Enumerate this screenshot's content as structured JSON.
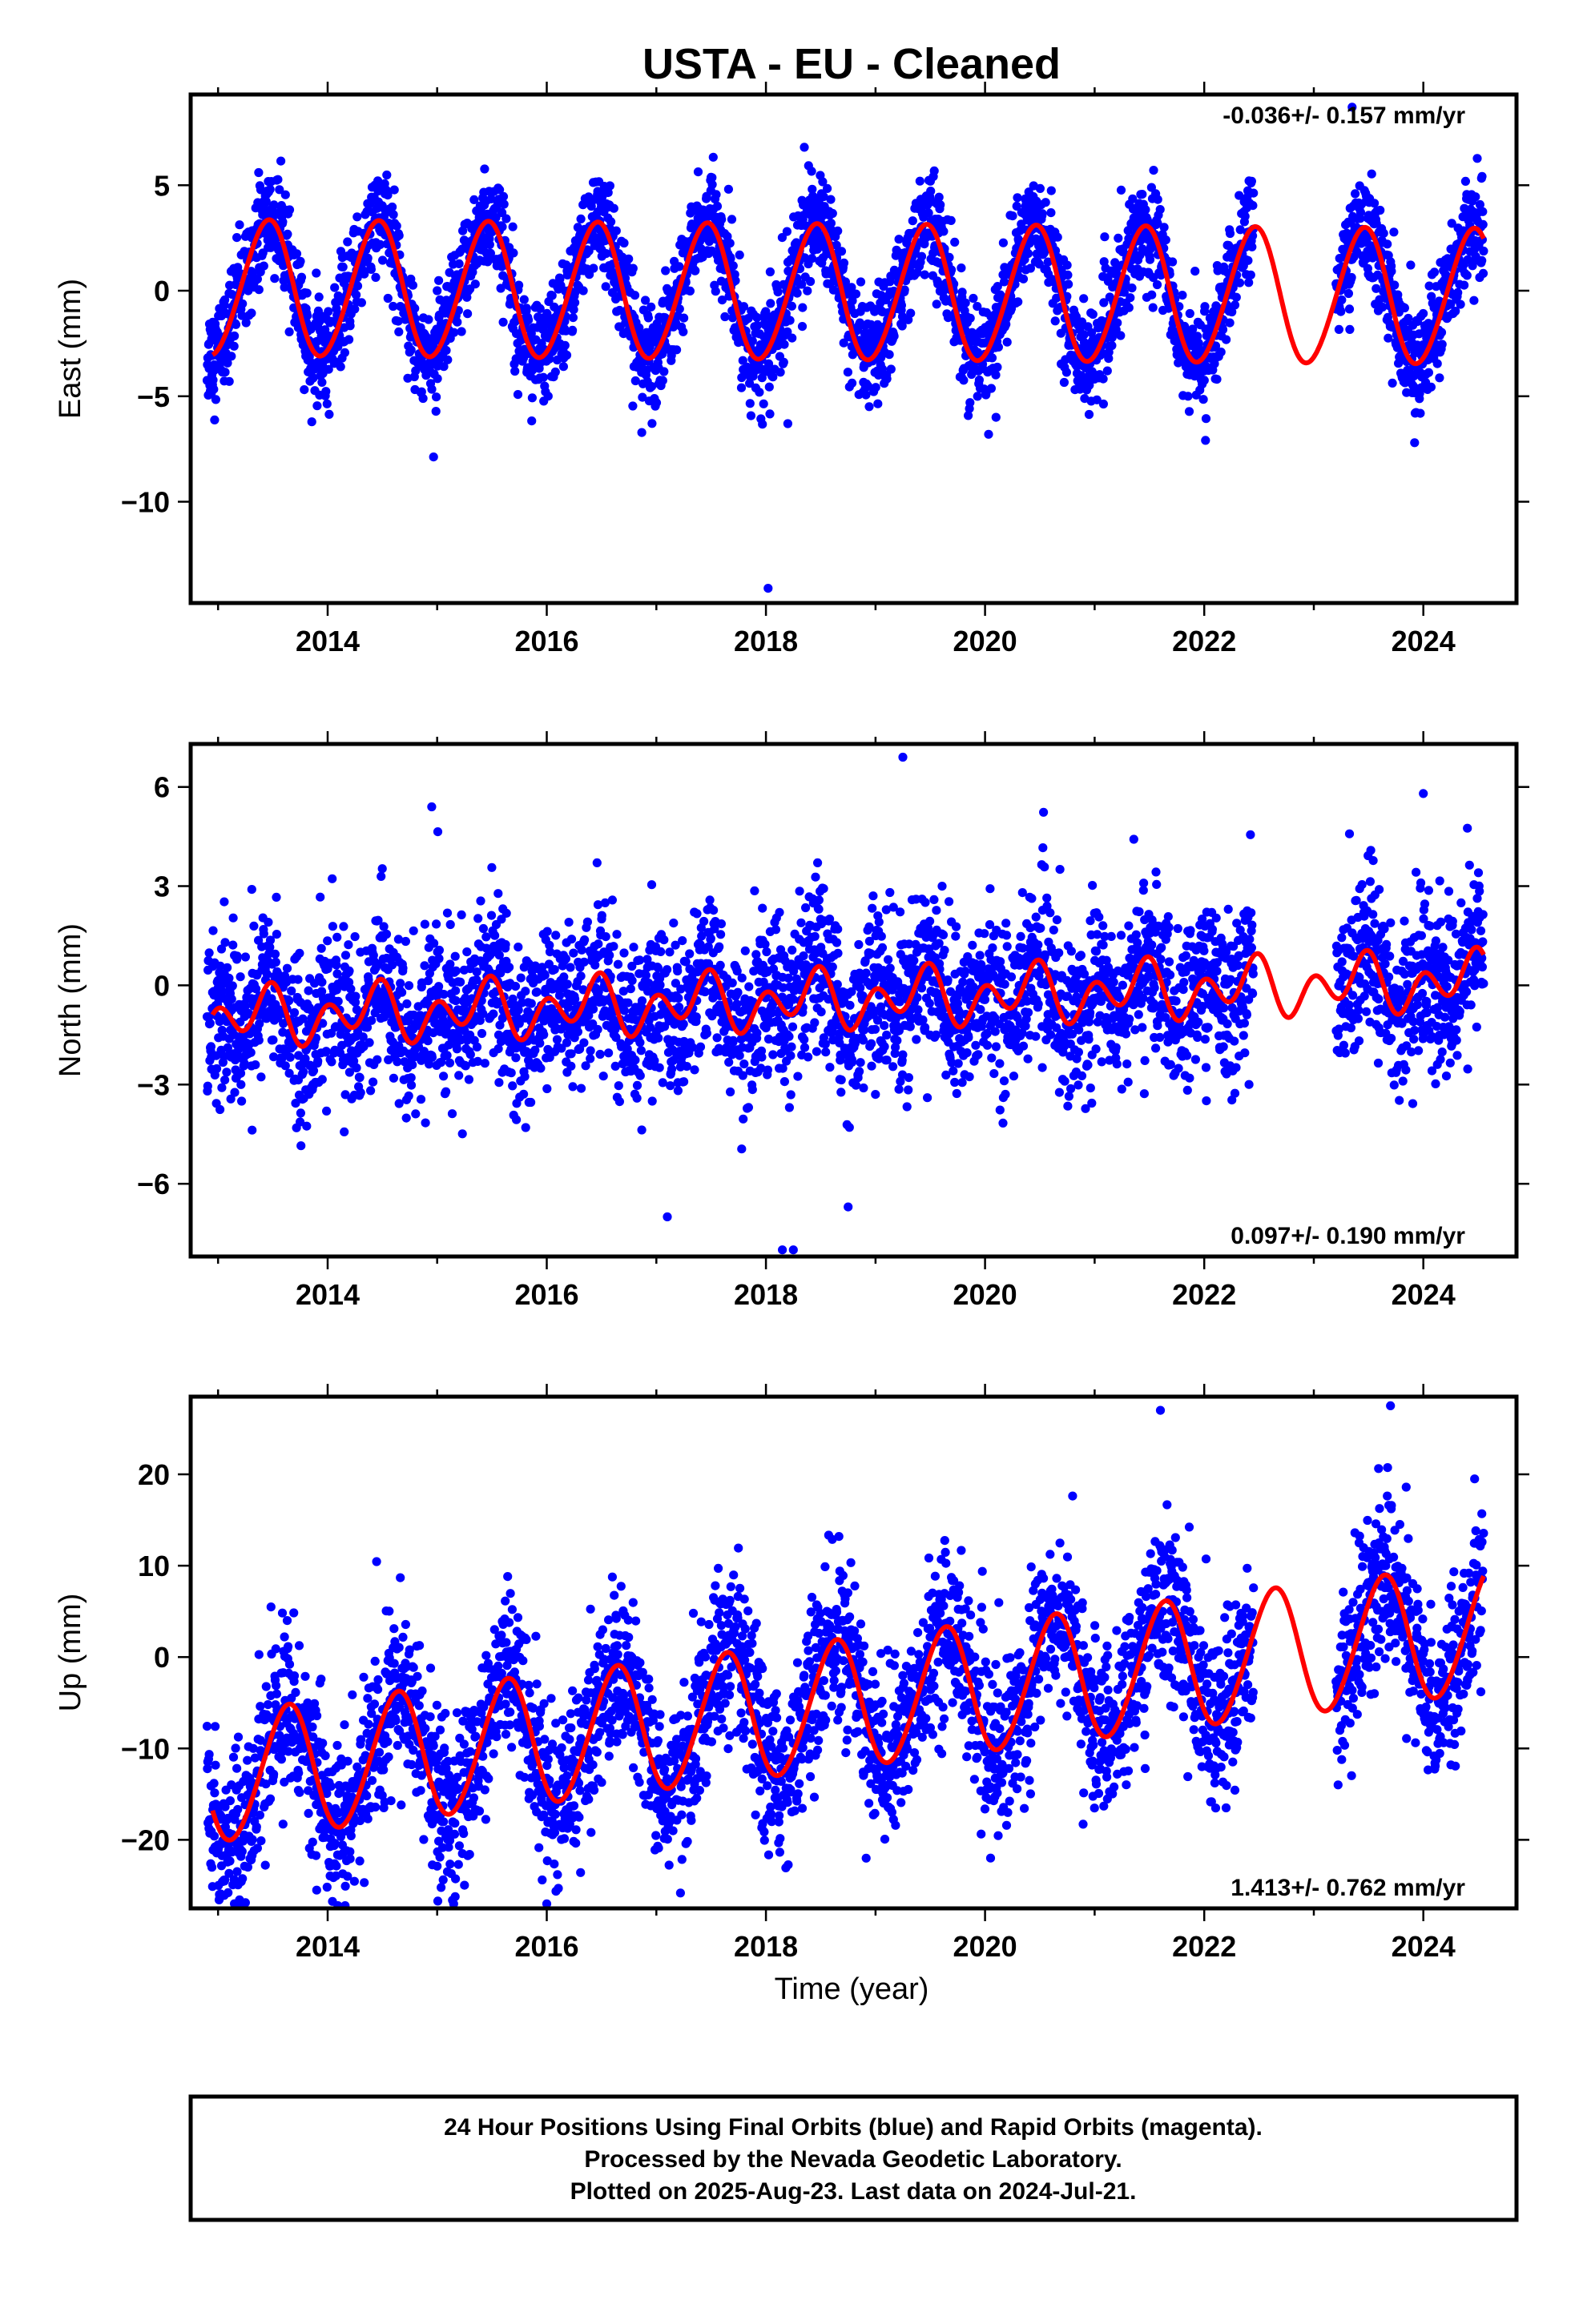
{
  "title": "USTA  - EU - Cleaned",
  "xlabel": "Time (year)",
  "footer": [
    "24 Hour Positions Using Final Orbits (blue) and Rapid Orbits (magenta).",
    "Processed by the Nevada Geodetic Laboratory.",
    "Plotted on 2025-Aug-23. Last data on 2024-Jul-21."
  ],
  "colors": {
    "data": "#0000ff",
    "model": "#ff0000",
    "frame": "#000000"
  },
  "chart_data": [
    {
      "type": "scatter",
      "ylabel": "East (mm)",
      "rate_text": "-0.036+/- 0.157 mm/yr",
      "rate_position": "top-right",
      "xlim": [
        2012.75,
        2024.85
      ],
      "ylim": [
        -14.8,
        9.3
      ],
      "xticks": [
        2014,
        2016,
        2018,
        2020,
        2022,
        2024
      ],
      "yticks": [
        5,
        0,
        -5,
        -10
      ],
      "ytick_labels": [
        "5",
        "0",
        "−5",
        "−10"
      ],
      "grid": false,
      "series": [
        {
          "kind": "observations",
          "sampling": "daily",
          "x_range": [
            2012.9,
            2024.55
          ],
          "data_gap": [
            2022.45,
            2023.2
          ],
          "model": {
            "offset": -0.1,
            "trend": -0.036,
            "amplitude": 3.2,
            "peak_phase": 0.45,
            "amplitude2": 0.2
          },
          "scatter_std": 1.2,
          "outliers": [
            [
              2018.02,
              -14.1
            ],
            [
              2023.92,
              -7.2
            ],
            [
              2018.2,
              -6.3
            ],
            [
              2020.1,
              -6.0
            ],
            [
              2023.35,
              8.7
            ],
            [
              2018.35,
              6.8
            ]
          ]
        },
        {
          "kind": "model_curve",
          "x_range": [
            2012.95,
            2024.55
          ],
          "model": {
            "offset": -0.1,
            "trend": -0.036,
            "amplitude": 3.2,
            "peak_phase": 0.45,
            "amplitude2": 0.2
          }
        }
      ]
    },
    {
      "type": "scatter",
      "ylabel": "North (mm)",
      "rate_text": "0.097+/- 0.190 mm/yr",
      "rate_position": "bottom-right",
      "xlim": [
        2012.75,
        2024.85
      ],
      "ylim": [
        -8.2,
        7.3
      ],
      "xticks": [
        2014,
        2016,
        2018,
        2020,
        2022,
        2024
      ],
      "yticks": [
        6,
        3,
        0,
        -3,
        -6
      ],
      "ytick_labels": [
        "6",
        "3",
        "0",
        "−3",
        "−6"
      ],
      "grid": false,
      "series": [
        {
          "kind": "observations",
          "sampling": "daily",
          "x_range": [
            2012.9,
            2024.55
          ],
          "data_gap": [
            2022.45,
            2023.2
          ],
          "model": {
            "offset": -0.45,
            "trend": 0.097,
            "amplitude": 0.45,
            "peak_phase": 0.4,
            "amplitude2": 0.65
          },
          "scatter_std": 1.2,
          "outliers": [
            [
              2019.25,
              6.9
            ],
            [
              2018.15,
              -8.0
            ],
            [
              2018.25,
              -8.0
            ],
            [
              2017.1,
              -7.0
            ],
            [
              2018.75,
              -6.7
            ],
            [
              2024.0,
              5.8
            ],
            [
              2014.95,
              5.4
            ]
          ]
        },
        {
          "kind": "model_curve",
          "x_range": [
            2012.95,
            2024.55
          ],
          "model": {
            "offset": -0.45,
            "trend": 0.097,
            "amplitude": 0.45,
            "peak_phase": 0.4,
            "amplitude2": 0.65
          }
        }
      ]
    },
    {
      "type": "scatter",
      "ylabel": "Up (mm)",
      "rate_text": "1.413+/- 0.762 mm/yr",
      "rate_position": "bottom-right",
      "xlim": [
        2012.75,
        2024.85
      ],
      "ylim": [
        -27.5,
        28.5
      ],
      "xticks": [
        2014,
        2016,
        2018,
        2020,
        2022,
        2024
      ],
      "yticks": [
        20,
        10,
        0,
        -10,
        -20
      ],
      "ytick_labels": [
        "20",
        "10",
        "0",
        "−10",
        "−20"
      ],
      "xlabel_shown": true,
      "grid": false,
      "series": [
        {
          "kind": "observations",
          "sampling": "daily",
          "x_range": [
            2012.9,
            2024.55
          ],
          "data_gap": [
            2022.45,
            2023.2
          ],
          "model": {
            "offset": -5.5,
            "trend": 1.413,
            "amplitude": 7.0,
            "peak_phase": 0.63,
            "amplitude2": 0.5
          },
          "scatter_std": 4.5,
          "outliers": [
            [
              2015.15,
              -27.0
            ],
            [
              2016.0,
              -27.0
            ],
            [
              2021.6,
              27.0
            ],
            [
              2023.7,
              27.5
            ],
            [
              2020.05,
              -22.0
            ],
            [
              2013.9,
              -25.5
            ],
            [
              2022.2,
              -16.5
            ]
          ]
        },
        {
          "kind": "model_curve",
          "x_range": [
            2012.95,
            2024.55
          ],
          "model": {
            "offset": -5.5,
            "trend": 1.413,
            "amplitude": 7.0,
            "peak_phase": 0.63,
            "amplitude2": 0.5
          }
        }
      ]
    }
  ]
}
